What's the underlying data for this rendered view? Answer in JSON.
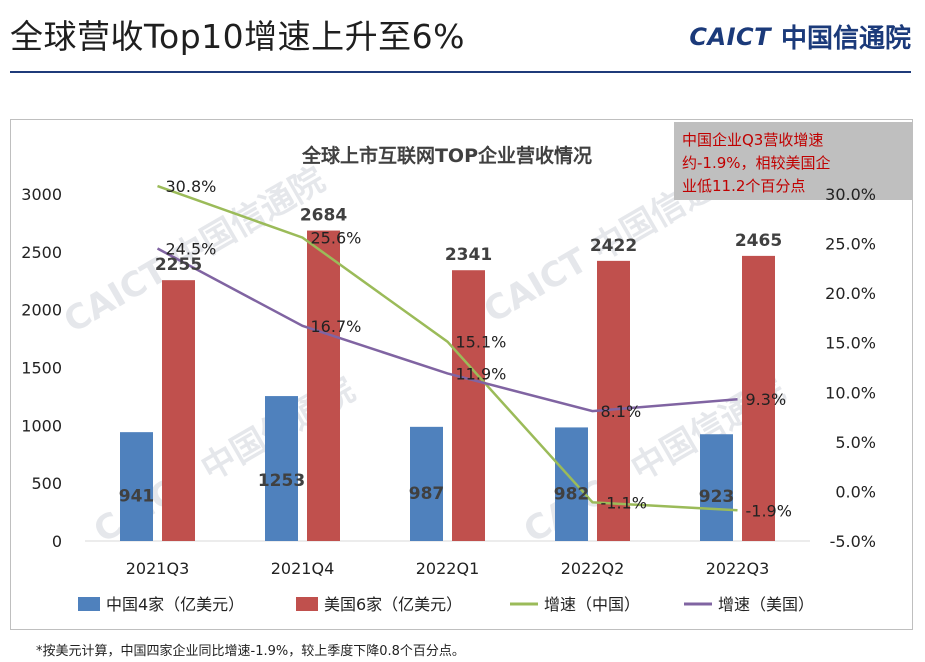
{
  "page": {
    "title": "全球营收Top10增速上升至6%",
    "brand_mark": "CAICT",
    "brand_name": "中国信通院",
    "watermark": "CAICT 中国信通院",
    "footnote": "*按美元计算，中国四家企业同比增速-1.9%，较上季度下降0.8个百分点。"
  },
  "chart_data": {
    "type": "bar",
    "title": "全球上市互联网TOP企业营收情况",
    "categories": [
      "2021Q3",
      "2021Q4",
      "2022Q1",
      "2022Q2",
      "2022Q3"
    ],
    "ylim": [
      0,
      3000
    ],
    "y_ticks": [
      "0",
      "500",
      "1000",
      "1500",
      "2000",
      "2500",
      "3000"
    ],
    "y2lim": [
      -5,
      30
    ],
    "y2_ticks": [
      "-5.0%",
      "0.0%",
      "5.0%",
      "10.0%",
      "15.0%",
      "20.0%",
      "25.0%",
      "30.0%"
    ],
    "series": [
      {
        "name": "中国4家（亿美元）",
        "type": "bar",
        "color": "#4f81bd",
        "values": [
          941,
          1253,
          987,
          982,
          923
        ],
        "labels": [
          "941",
          "1253",
          "987",
          "982",
          "923"
        ]
      },
      {
        "name": "美国6家（亿美元）",
        "type": "bar",
        "color": "#c0504d",
        "values": [
          2255,
          2684,
          2341,
          2422,
          2465
        ],
        "labels": [
          "2255",
          "2684",
          "2341",
          "2422",
          "2465"
        ]
      },
      {
        "name": "增速（中国）",
        "type": "line",
        "axis": "right",
        "color": "#9bbb59",
        "values": [
          30.8,
          25.6,
          15.1,
          -1.1,
          -1.9
        ],
        "labels": [
          "30.8%",
          "25.6%",
          "15.1%",
          "-1.1%",
          "-1.9%"
        ]
      },
      {
        "name": "增速（美国）",
        "type": "line",
        "axis": "right",
        "color": "#8064a2",
        "values": [
          24.5,
          16.7,
          11.9,
          8.1,
          9.3
        ],
        "labels": [
          "24.5%",
          "16.7%",
          "11.9%",
          "8.1%",
          "9.3%"
        ]
      }
    ],
    "callout": [
      "中国企业Q3营收增速",
      "约-1.9%，相较美国企",
      "业低11.2个百分点"
    ]
  }
}
